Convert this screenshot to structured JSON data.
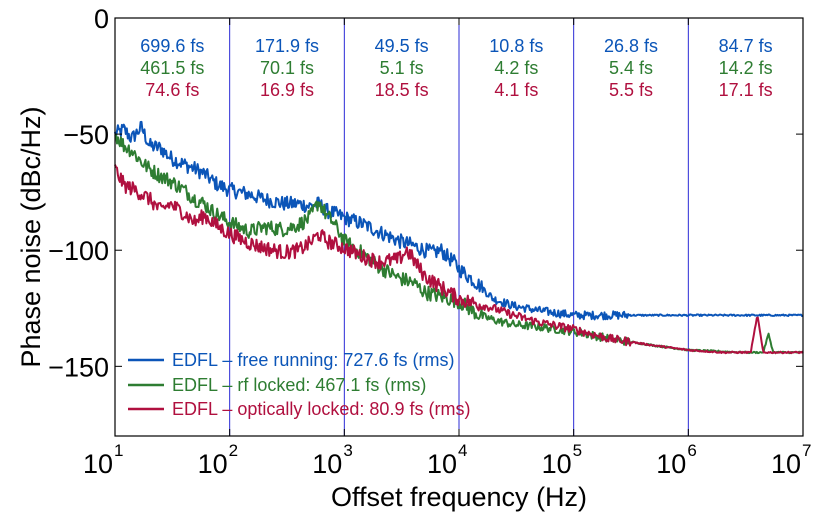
{
  "chart_data": {
    "type": "line",
    "xlabel": "Offset frequency (Hz)",
    "ylabel": "Phase noise (dBc/Hz)",
    "x_scale": "log",
    "xlim": [
      10,
      10000000
    ],
    "ylim": [
      -180,
      0
    ],
    "x_ticks": [
      {
        "value": 10,
        "base": "10",
        "exp": "1"
      },
      {
        "value": 100,
        "base": "10",
        "exp": "2"
      },
      {
        "value": 1000,
        "base": "10",
        "exp": "3"
      },
      {
        "value": 10000,
        "base": "10",
        "exp": "4"
      },
      {
        "value": 100000,
        "base": "10",
        "exp": "5"
      },
      {
        "value": 1000000,
        "base": "10",
        "exp": "6"
      },
      {
        "value": 10000000,
        "base": "10",
        "exp": "7"
      }
    ],
    "y_ticks": [
      {
        "value": 0,
        "label": "0"
      },
      {
        "value": -50,
        "label": "−50"
      },
      {
        "value": -100,
        "label": "−100"
      },
      {
        "value": -150,
        "label": "−150"
      }
    ],
    "decade_lines": [
      100,
      1000,
      10000,
      100000,
      1000000
    ],
    "legend_position": "bottom-left",
    "series": [
      {
        "name": "EDFL – free running: 727.6 fs (rms)",
        "color": "#0b55b8",
        "points": [
          [
            10,
            -50
          ],
          [
            12,
            -48
          ],
          [
            14,
            -52
          ],
          [
            17,
            -47
          ],
          [
            20,
            -55
          ],
          [
            25,
            -56
          ],
          [
            30,
            -60
          ],
          [
            40,
            -63
          ],
          [
            50,
            -65
          ],
          [
            60,
            -67
          ],
          [
            70,
            -70
          ],
          [
            80,
            -72
          ],
          [
            100,
            -74
          ],
          [
            150,
            -76
          ],
          [
            200,
            -78
          ],
          [
            300,
            -80
          ],
          [
            400,
            -80
          ],
          [
            500,
            -81
          ],
          [
            600,
            -80
          ],
          [
            700,
            -83
          ],
          [
            800,
            -84
          ],
          [
            1000,
            -86
          ],
          [
            1500,
            -89
          ],
          [
            2000,
            -92
          ],
          [
            3000,
            -96
          ],
          [
            4000,
            -98
          ],
          [
            5000,
            -100
          ],
          [
            6000,
            -101
          ],
          [
            7000,
            -100
          ],
          [
            8000,
            -103
          ],
          [
            9000,
            -105
          ],
          [
            10000,
            -108
          ],
          [
            15000,
            -115
          ],
          [
            20000,
            -121
          ],
          [
            30000,
            -124
          ],
          [
            50000,
            -126
          ],
          [
            70000,
            -127
          ],
          [
            100000,
            -128
          ],
          [
            200000,
            -128
          ],
          [
            500000,
            -128
          ],
          [
            1000000,
            -128
          ],
          [
            3000000,
            -128
          ],
          [
            10000000,
            -128
          ]
        ]
      },
      {
        "name": "EDFL – rf locked: 467.1 fs (rms)",
        "color": "#2e7d32",
        "points": [
          [
            10,
            -50
          ],
          [
            12,
            -55
          ],
          [
            14,
            -57
          ],
          [
            17,
            -62
          ],
          [
            20,
            -65
          ],
          [
            25,
            -68
          ],
          [
            30,
            -70
          ],
          [
            40,
            -74
          ],
          [
            50,
            -78
          ],
          [
            60,
            -80
          ],
          [
            70,
            -83
          ],
          [
            80,
            -85
          ],
          [
            100,
            -88
          ],
          [
            150,
            -92
          ],
          [
            200,
            -90
          ],
          [
            300,
            -91
          ],
          [
            400,
            -89
          ],
          [
            500,
            -86
          ],
          [
            600,
            -79
          ],
          [
            700,
            -85
          ],
          [
            800,
            -88
          ],
          [
            1000,
            -96
          ],
          [
            1500,
            -102
          ],
          [
            2000,
            -107
          ],
          [
            3000,
            -112
          ],
          [
            4000,
            -114
          ],
          [
            5000,
            -118
          ],
          [
            7000,
            -120
          ],
          [
            10000,
            -122
          ],
          [
            15000,
            -128
          ],
          [
            20000,
            -130
          ],
          [
            30000,
            -132
          ],
          [
            50000,
            -133
          ],
          [
            100000,
            -135
          ],
          [
            200000,
            -138
          ],
          [
            500000,
            -141
          ],
          [
            1000000,
            -143
          ],
          [
            3000000,
            -144
          ],
          [
            4500000,
            -144
          ],
          [
            5000000,
            -136
          ],
          [
            5500000,
            -144
          ],
          [
            10000000,
            -144
          ]
        ]
      },
      {
        "name": "EDFL – optically locked: 80.9 fs (rms)",
        "color": "#b0103f",
        "points": [
          [
            10,
            -65
          ],
          [
            12,
            -72
          ],
          [
            15,
            -74
          ],
          [
            20,
            -78
          ],
          [
            25,
            -83
          ],
          [
            30,
            -80
          ],
          [
            40,
            -84
          ],
          [
            50,
            -88
          ],
          [
            60,
            -85
          ],
          [
            80,
            -90
          ],
          [
            100,
            -93
          ],
          [
            150,
            -97
          ],
          [
            200,
            -99
          ],
          [
            300,
            -101
          ],
          [
            400,
            -100
          ],
          [
            500,
            -97
          ],
          [
            600,
            -93
          ],
          [
            700,
            -96
          ],
          [
            1000,
            -99
          ],
          [
            1500,
            -103
          ],
          [
            2000,
            -105
          ],
          [
            3000,
            -104
          ],
          [
            3500,
            -100
          ],
          [
            4000,
            -104
          ],
          [
            5000,
            -111
          ],
          [
            7000,
            -116
          ],
          [
            10000,
            -121
          ],
          [
            20000,
            -125
          ],
          [
            30000,
            -128
          ],
          [
            50000,
            -131
          ],
          [
            100000,
            -134
          ],
          [
            200000,
            -138
          ],
          [
            500000,
            -141
          ],
          [
            1000000,
            -143
          ],
          [
            2000000,
            -144
          ],
          [
            3500000,
            -144
          ],
          [
            4000000,
            -128
          ],
          [
            4500000,
            -144
          ],
          [
            10000000,
            -144
          ]
        ]
      }
    ],
    "annotations": [
      {
        "band": [
          10,
          100
        ],
        "values": [
          "699.6 fs",
          "461.5 fs",
          "74.6 fs"
        ]
      },
      {
        "band": [
          100,
          1000
        ],
        "values": [
          "171.9 fs",
          "70.1 fs",
          "16.9 fs"
        ]
      },
      {
        "band": [
          1000,
          10000
        ],
        "values": [
          "49.5 fs",
          "5.1 fs",
          "18.5 fs"
        ]
      },
      {
        "band": [
          10000,
          100000
        ],
        "values": [
          "10.8 fs",
          "4.2 fs",
          "4.1 fs"
        ]
      },
      {
        "band": [
          100000,
          1000000
        ],
        "values": [
          "26.8 fs",
          "5.4 fs",
          "5.5 fs"
        ]
      },
      {
        "band": [
          1000000,
          10000000
        ],
        "values": [
          "84.7 fs",
          "14.2 fs",
          "17.1 fs"
        ]
      }
    ]
  }
}
